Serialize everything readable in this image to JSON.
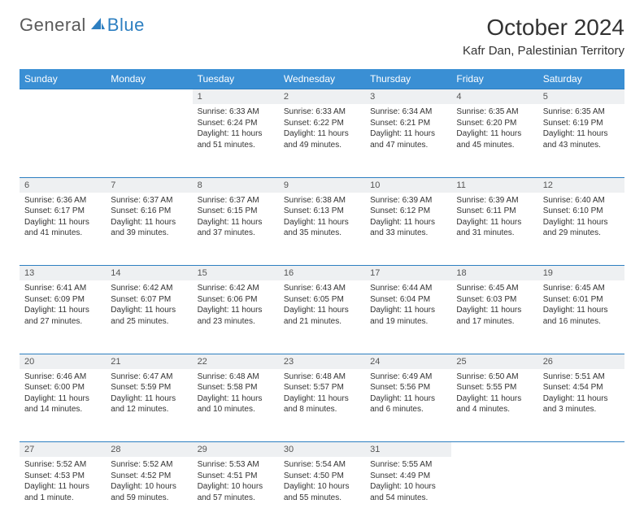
{
  "brand": {
    "word1": "General",
    "word2": "Blue"
  },
  "title": "October 2024",
  "location": "Kafr Dan, Palestinian Territory",
  "colors": {
    "header_bg": "#3a8fd4",
    "header_text": "#ffffff",
    "daynum_bg": "#eef0f2",
    "border": "#2d7fc1",
    "brand_blue": "#2d7fc1",
    "brand_gray": "#5a5a5a"
  },
  "weekdays": [
    "Sunday",
    "Monday",
    "Tuesday",
    "Wednesday",
    "Thursday",
    "Friday",
    "Saturday"
  ],
  "weeks": [
    [
      null,
      null,
      {
        "n": "1",
        "sr": "6:33 AM",
        "ss": "6:24 PM",
        "dl": "11 hours and 51 minutes."
      },
      {
        "n": "2",
        "sr": "6:33 AM",
        "ss": "6:22 PM",
        "dl": "11 hours and 49 minutes."
      },
      {
        "n": "3",
        "sr": "6:34 AM",
        "ss": "6:21 PM",
        "dl": "11 hours and 47 minutes."
      },
      {
        "n": "4",
        "sr": "6:35 AM",
        "ss": "6:20 PM",
        "dl": "11 hours and 45 minutes."
      },
      {
        "n": "5",
        "sr": "6:35 AM",
        "ss": "6:19 PM",
        "dl": "11 hours and 43 minutes."
      }
    ],
    [
      {
        "n": "6",
        "sr": "6:36 AM",
        "ss": "6:17 PM",
        "dl": "11 hours and 41 minutes."
      },
      {
        "n": "7",
        "sr": "6:37 AM",
        "ss": "6:16 PM",
        "dl": "11 hours and 39 minutes."
      },
      {
        "n": "8",
        "sr": "6:37 AM",
        "ss": "6:15 PM",
        "dl": "11 hours and 37 minutes."
      },
      {
        "n": "9",
        "sr": "6:38 AM",
        "ss": "6:13 PM",
        "dl": "11 hours and 35 minutes."
      },
      {
        "n": "10",
        "sr": "6:39 AM",
        "ss": "6:12 PM",
        "dl": "11 hours and 33 minutes."
      },
      {
        "n": "11",
        "sr": "6:39 AM",
        "ss": "6:11 PM",
        "dl": "11 hours and 31 minutes."
      },
      {
        "n": "12",
        "sr": "6:40 AM",
        "ss": "6:10 PM",
        "dl": "11 hours and 29 minutes."
      }
    ],
    [
      {
        "n": "13",
        "sr": "6:41 AM",
        "ss": "6:09 PM",
        "dl": "11 hours and 27 minutes."
      },
      {
        "n": "14",
        "sr": "6:42 AM",
        "ss": "6:07 PM",
        "dl": "11 hours and 25 minutes."
      },
      {
        "n": "15",
        "sr": "6:42 AM",
        "ss": "6:06 PM",
        "dl": "11 hours and 23 minutes."
      },
      {
        "n": "16",
        "sr": "6:43 AM",
        "ss": "6:05 PM",
        "dl": "11 hours and 21 minutes."
      },
      {
        "n": "17",
        "sr": "6:44 AM",
        "ss": "6:04 PM",
        "dl": "11 hours and 19 minutes."
      },
      {
        "n": "18",
        "sr": "6:45 AM",
        "ss": "6:03 PM",
        "dl": "11 hours and 17 minutes."
      },
      {
        "n": "19",
        "sr": "6:45 AM",
        "ss": "6:01 PM",
        "dl": "11 hours and 16 minutes."
      }
    ],
    [
      {
        "n": "20",
        "sr": "6:46 AM",
        "ss": "6:00 PM",
        "dl": "11 hours and 14 minutes."
      },
      {
        "n": "21",
        "sr": "6:47 AM",
        "ss": "5:59 PM",
        "dl": "11 hours and 12 minutes."
      },
      {
        "n": "22",
        "sr": "6:48 AM",
        "ss": "5:58 PM",
        "dl": "11 hours and 10 minutes."
      },
      {
        "n": "23",
        "sr": "6:48 AM",
        "ss": "5:57 PM",
        "dl": "11 hours and 8 minutes."
      },
      {
        "n": "24",
        "sr": "6:49 AM",
        "ss": "5:56 PM",
        "dl": "11 hours and 6 minutes."
      },
      {
        "n": "25",
        "sr": "6:50 AM",
        "ss": "5:55 PM",
        "dl": "11 hours and 4 minutes."
      },
      {
        "n": "26",
        "sr": "5:51 AM",
        "ss": "4:54 PM",
        "dl": "11 hours and 3 minutes."
      }
    ],
    [
      {
        "n": "27",
        "sr": "5:52 AM",
        "ss": "4:53 PM",
        "dl": "11 hours and 1 minute."
      },
      {
        "n": "28",
        "sr": "5:52 AM",
        "ss": "4:52 PM",
        "dl": "10 hours and 59 minutes."
      },
      {
        "n": "29",
        "sr": "5:53 AM",
        "ss": "4:51 PM",
        "dl": "10 hours and 57 minutes."
      },
      {
        "n": "30",
        "sr": "5:54 AM",
        "ss": "4:50 PM",
        "dl": "10 hours and 55 minutes."
      },
      {
        "n": "31",
        "sr": "5:55 AM",
        "ss": "4:49 PM",
        "dl": "10 hours and 54 minutes."
      },
      null,
      null
    ]
  ],
  "labels": {
    "sunrise": "Sunrise:",
    "sunset": "Sunset:",
    "daylight": "Daylight:"
  }
}
